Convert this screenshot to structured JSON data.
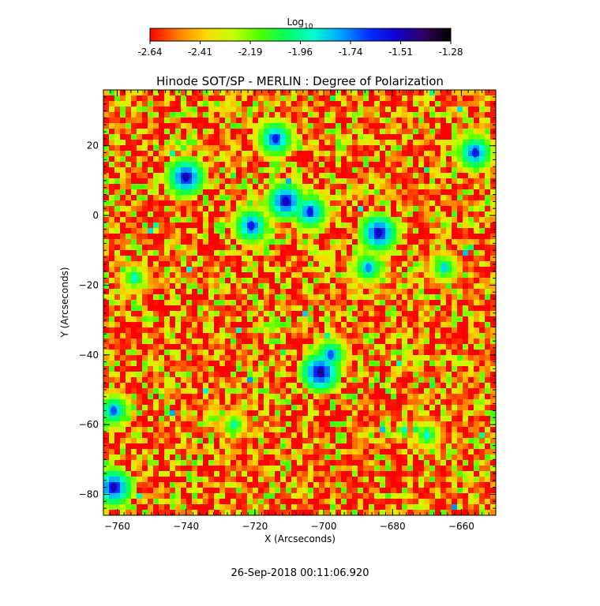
{
  "chart_data": {
    "type": "heatmap",
    "title": "Hinode SOT/SP - MERLIN : Degree of Polarization",
    "xlabel": "X (Arcseconds)",
    "ylabel": "Y (Arcseconds)",
    "xlim": [
      -764,
      -650
    ],
    "ylim": [
      -86,
      36
    ],
    "x_ticks": [
      -760,
      -740,
      -720,
      -700,
      -680,
      -660
    ],
    "y_ticks": [
      -80,
      -60,
      -40,
      -20,
      0,
      20
    ],
    "colorbar": {
      "label_base": "Log",
      "label_sub": "10",
      "range": [
        -2.64,
        -1.28
      ],
      "ticks": [
        "-2.64",
        "-2.41",
        "-2.19",
        "-1.96",
        "-1.74",
        "-1.51",
        "-1.28"
      ],
      "colors": [
        "#ff0000",
        "#ff7a00",
        "#ffd500",
        "#c8ff00",
        "#50ff00",
        "#00ff60",
        "#00ffd0",
        "#00a0ff",
        "#0030ff",
        "#1000d0",
        "#300060",
        "#000000"
      ]
    },
    "background_level": -2.58,
    "features": [
      {
        "x": -761,
        "y": -78,
        "level": -1.5
      },
      {
        "x": -761,
        "y": -56,
        "level": -1.7
      },
      {
        "x": -740,
        "y": 11,
        "level": -1.5
      },
      {
        "x": -721,
        "y": -3,
        "level": -1.6
      },
      {
        "x": -714,
        "y": 22,
        "level": -1.6
      },
      {
        "x": -711,
        "y": 4,
        "level": -1.5
      },
      {
        "x": -704,
        "y": 1,
        "level": -1.6
      },
      {
        "x": -701,
        "y": -45,
        "level": -1.45
      },
      {
        "x": -698,
        "y": -40,
        "level": -1.7
      },
      {
        "x": -684,
        "y": -5,
        "level": -1.5
      },
      {
        "x": -687,
        "y": -15,
        "level": -1.75
      },
      {
        "x": -665,
        "y": -15,
        "level": -1.85
      },
      {
        "x": -656,
        "y": 18,
        "level": -1.6
      },
      {
        "x": -670,
        "y": -63,
        "level": -1.9
      },
      {
        "x": -755,
        "y": -18,
        "level": -1.9
      },
      {
        "x": -726,
        "y": -60,
        "level": -1.95
      }
    ]
  },
  "footer": {
    "timestamp": "26-Sep-2018 00:11:06.920"
  }
}
